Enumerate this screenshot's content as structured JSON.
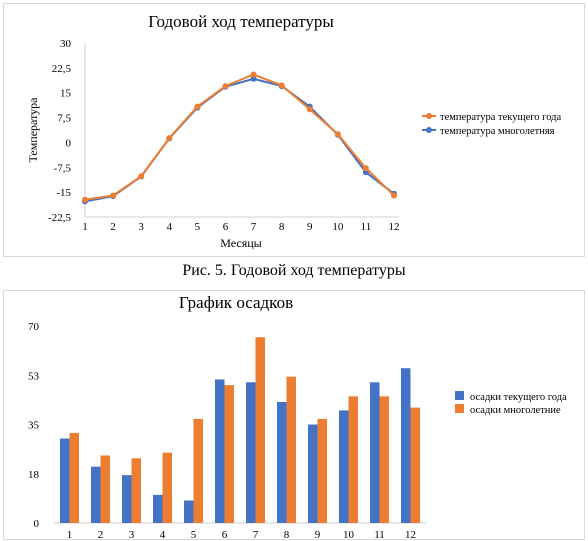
{
  "caption": "Рис. 5. Годовой ход температуры",
  "chart_data": [
    {
      "type": "line",
      "title": "Годовой ход температуры",
      "xlabel": "Месяцы",
      "ylabel": "Температура",
      "x": [
        1,
        2,
        3,
        4,
        5,
        6,
        7,
        8,
        9,
        10,
        11,
        12
      ],
      "ylim": [
        -22.5,
        30
      ],
      "yticks": [
        "30",
        "22,5",
        "15",
        "7,5",
        "0",
        "-7,5",
        "-15",
        "-22,5"
      ],
      "ytick_values": [
        30,
        22.5,
        15,
        7.5,
        0,
        -7.5,
        -15,
        -22.5
      ],
      "grid": false,
      "legend": "right",
      "series": [
        {
          "name": "температура текущего года",
          "color": "#ed7d31",
          "values": [
            -17.3,
            -16.0,
            -10.2,
            1.3,
            10.8,
            17.0,
            20.5,
            17.2,
            10.0,
            2.5,
            -7.8,
            -16.0
          ]
        },
        {
          "name": "температура многолетняя",
          "color": "#4472c4",
          "values": [
            -17.8,
            -16.2,
            -10.3,
            1.2,
            10.5,
            16.8,
            19.2,
            17.0,
            10.8,
            2.3,
            -9.0,
            -15.5
          ]
        }
      ]
    },
    {
      "type": "bar",
      "title": "График осадков",
      "xlabel": "",
      "ylabel": "",
      "categories": [
        "1",
        "2",
        "3",
        "4",
        "5",
        "6",
        "7",
        "8",
        "9",
        "10",
        "11",
        "12"
      ],
      "ylim": [
        0,
        70
      ],
      "yticks": [
        "70",
        "53",
        "35",
        "18",
        "0"
      ],
      "ytick_values": [
        70,
        52.5,
        35,
        17.5,
        0
      ],
      "grid": false,
      "legend": "right",
      "series": [
        {
          "name": "осадки текущего года",
          "color": "#4472c4",
          "values": [
            30,
            20,
            17,
            10,
            8,
            51,
            50,
            43,
            35,
            40,
            50,
            55
          ]
        },
        {
          "name": "осадки многолетние",
          "color": "#ed7d31",
          "values": [
            32,
            24,
            23,
            25,
            37,
            49,
            66,
            52,
            37,
            45,
            45,
            41
          ]
        }
      ]
    }
  ]
}
